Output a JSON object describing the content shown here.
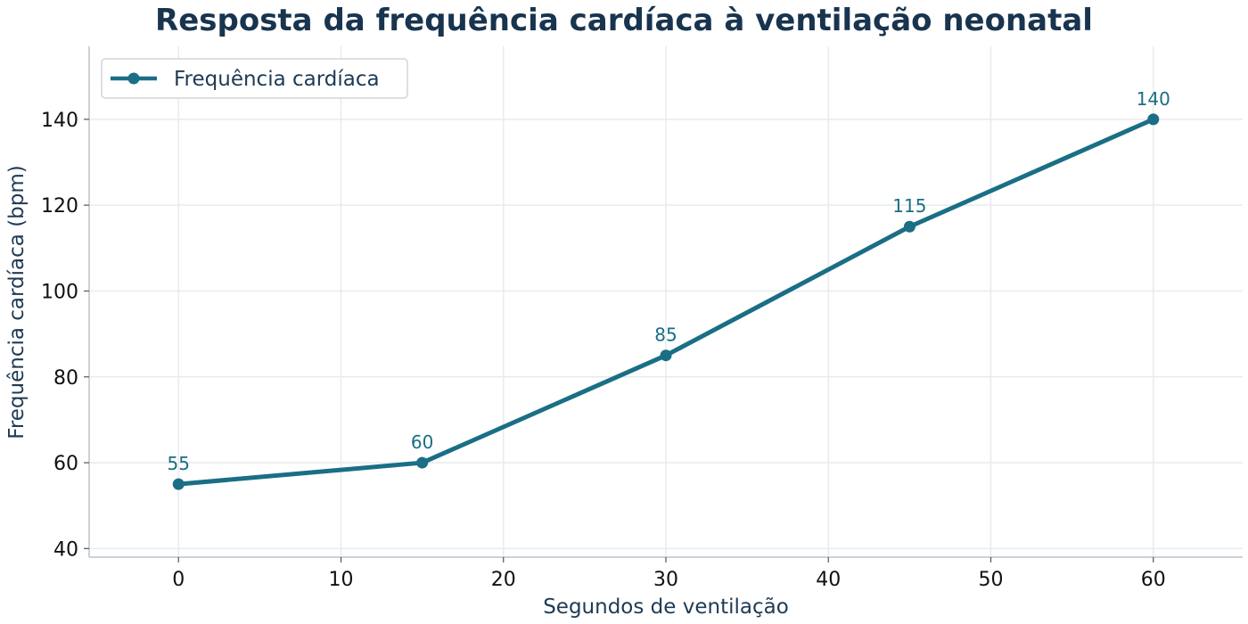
{
  "chart_data": {
    "type": "line",
    "title": "Resposta da frequência cardíaca à ventilação neonatal",
    "xlabel": "Segundos de ventilação",
    "ylabel": "Frequência cardíaca (bpm)",
    "x": [
      0,
      15,
      30,
      45,
      60
    ],
    "series": [
      {
        "name": "Frequência cardíaca",
        "values": [
          55,
          60,
          85,
          115,
          140
        ]
      }
    ],
    "data_labels": [
      "55",
      "60",
      "85",
      "115",
      "140"
    ],
    "xlim": [
      -5.5,
      65.5
    ],
    "ylim": [
      38,
      157
    ],
    "xticks": [
      0,
      10,
      20,
      30,
      40,
      50,
      60
    ],
    "yticks": [
      40,
      60,
      80,
      100,
      120,
      140
    ],
    "grid": true,
    "legend_position": "top-left",
    "colors": {
      "line": "#1a6e85",
      "title": "#18344f",
      "axis_label": "#1e3a55",
      "grid": "#e8ebee",
      "spine": "#b8c4cc"
    }
  }
}
